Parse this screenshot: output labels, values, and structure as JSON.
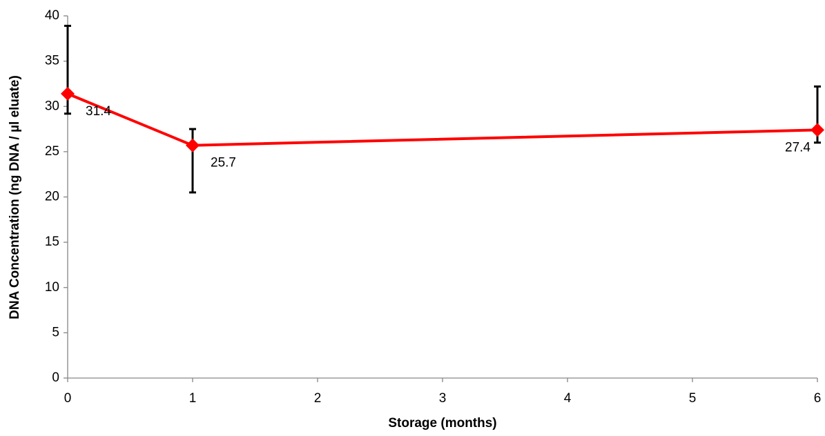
{
  "chart_data": {
    "type": "line",
    "x_label": "Storage (months)",
    "y_label": "DNA Concentration (ng DNA / µl eluate)",
    "x": [
      0,
      1,
      6
    ],
    "series": [
      {
        "color": "#ff0000",
        "values": [
          31.4,
          25.7,
          27.4
        ],
        "error_plus": [
          7.5,
          1.8,
          4.8
        ],
        "error_minus": [
          2.2,
          5.2,
          1.4
        ]
      }
    ],
    "xlim": [
      0,
      6
    ],
    "xticks": [
      0,
      1,
      2,
      3,
      4,
      5,
      6
    ],
    "ylim": [
      0,
      40
    ],
    "yticks": [
      0,
      5,
      10,
      15,
      20,
      25,
      30,
      35,
      40
    ],
    "grid": false
  }
}
